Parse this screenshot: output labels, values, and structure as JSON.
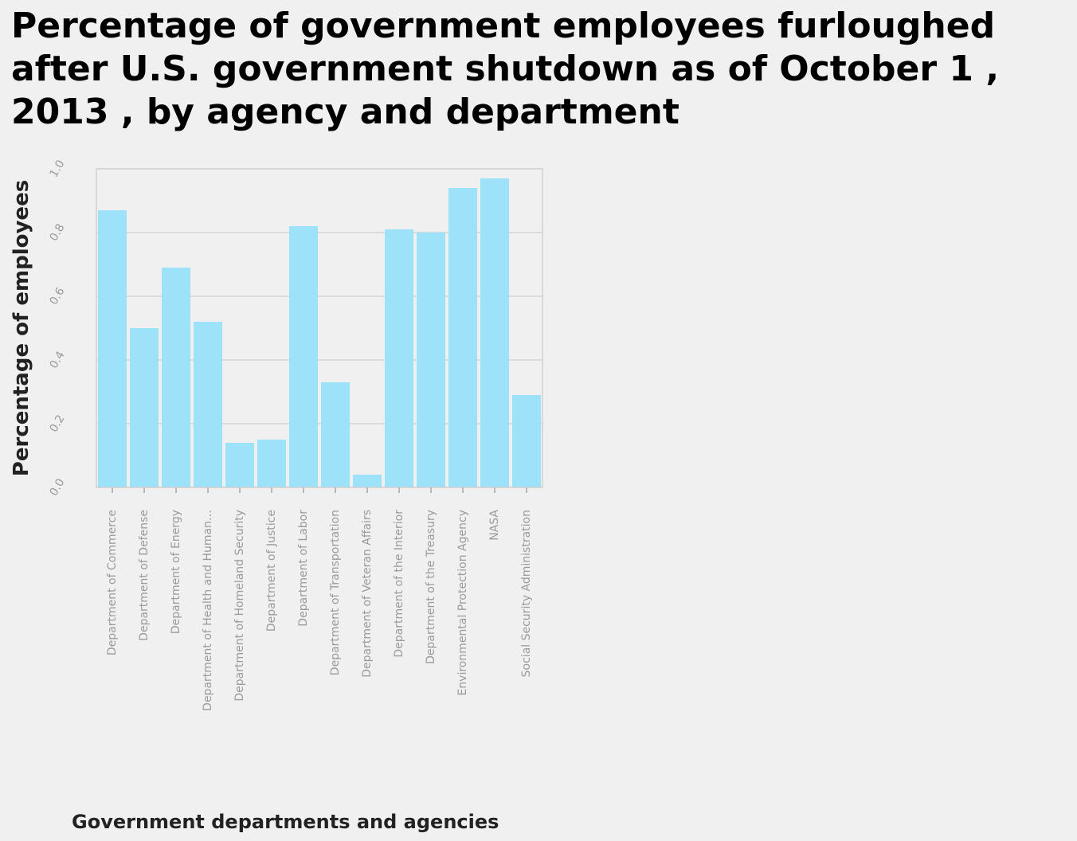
{
  "chart_data": {
    "type": "bar",
    "title": "Percentage of government employees furloughed after U.S. government shutdown as of October 1 , 2013 , by agency and department",
    "xlabel": "Government departments and agencies",
    "ylabel": "Percentage of employees",
    "ylim": [
      0,
      1.0
    ],
    "yticks": [
      "0.0",
      "0.2",
      "0.4",
      "0.6",
      "0.8",
      "1.0"
    ],
    "grid": "horizontal",
    "bar_color": "#9de2f8",
    "categories": [
      "Department of Commerce",
      "Department of Defense",
      "Department of Energy",
      "Department of Health and Human…",
      "Department of Homeland Security",
      "Department of Justice",
      "Department of Labor",
      "Department of Transportation",
      "Department of Veteran Affairs",
      "Department of the Interior",
      "Department of the Treasury",
      "Environmental Protection Agency",
      "NASA",
      "Social Security Administration"
    ],
    "values": [
      0.87,
      0.5,
      0.69,
      0.52,
      0.14,
      0.15,
      0.82,
      0.33,
      0.04,
      0.81,
      0.8,
      0.94,
      0.97,
      0.29
    ]
  }
}
